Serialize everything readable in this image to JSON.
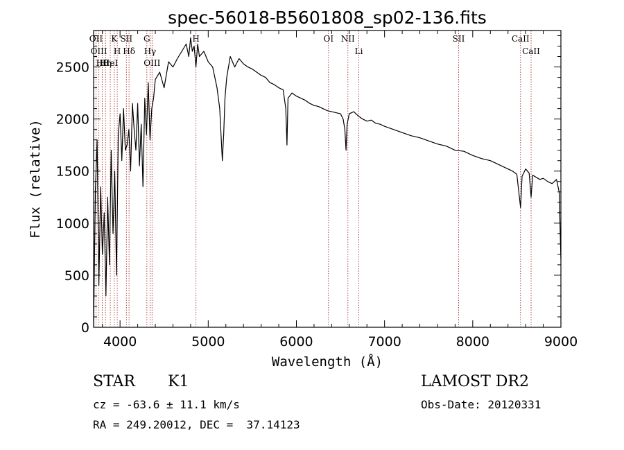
{
  "chart_data": {
    "type": "line",
    "title": "spec-56018-B5601808_sp02-136.fits",
    "xlabel": "Wavelength (Å)",
    "ylabel": "Flux (relative)",
    "xlim": [
      3700,
      9000
    ],
    "ylim": [
      0,
      2850
    ],
    "x_ticks": [
      4000,
      5000,
      6000,
      7000,
      8000,
      9000
    ],
    "y_ticks": [
      0,
      500,
      1000,
      1500,
      2000,
      2500
    ],
    "grid": false,
    "series": [
      {
        "color": "#000000",
        "x": [
          3700,
          3720,
          3740,
          3760,
          3780,
          3800,
          3820,
          3840,
          3860,
          3880,
          3900,
          3920,
          3940,
          3960,
          3980,
          4000,
          4020,
          4040,
          4060,
          4080,
          4100,
          4120,
          4140,
          4160,
          4180,
          4200,
          4220,
          4240,
          4260,
          4280,
          4300,
          4320,
          4340,
          4360,
          4380,
          4400,
          4450,
          4500,
          4550,
          4600,
          4650,
          4700,
          4750,
          4780,
          4800,
          4820,
          4840,
          4861,
          4880,
          4900,
          4950,
          5000,
          5050,
          5100,
          5130,
          5160,
          5175,
          5190,
          5210,
          5250,
          5300,
          5350,
          5400,
          5450,
          5500,
          5550,
          5600,
          5650,
          5700,
          5750,
          5800,
          5850,
          5880,
          5893,
          5905,
          5950,
          6000,
          6050,
          6100,
          6150,
          6200,
          6250,
          6300,
          6350,
          6400,
          6450,
          6500,
          6530,
          6550,
          6563,
          6575,
          6600,
          6650,
          6700,
          6750,
          6800,
          6850,
          6900,
          6950,
          7000,
          7100,
          7200,
          7300,
          7400,
          7500,
          7600,
          7700,
          7800,
          7900,
          8000,
          8100,
          8200,
          8300,
          8400,
          8450,
          8500,
          8542,
          8560,
          8600,
          8640,
          8662,
          8680,
          8720,
          8760,
          8800,
          8850,
          8900,
          8950,
          8980,
          9000
        ],
        "y": [
          0,
          1300,
          1800,
          400,
          1350,
          700,
          1100,
          300,
          1250,
          600,
          1700,
          900,
          1500,
          500,
          1850,
          2050,
          1600,
          2100,
          1700,
          1750,
          1900,
          1500,
          2150,
          1900,
          1700,
          2150,
          1550,
          1950,
          1350,
          2200,
          1850,
          2350,
          1800,
          2100,
          2200,
          2380,
          2450,
          2300,
          2550,
          2500,
          2580,
          2650,
          2720,
          2600,
          2780,
          2650,
          2700,
          2500,
          2720,
          2600,
          2650,
          2550,
          2500,
          2300,
          2100,
          1600,
          1850,
          2200,
          2400,
          2600,
          2500,
          2580,
          2530,
          2500,
          2480,
          2450,
          2420,
          2400,
          2350,
          2330,
          2300,
          2280,
          2100,
          1750,
          2200,
          2250,
          2220,
          2200,
          2180,
          2150,
          2130,
          2120,
          2100,
          2080,
          2070,
          2060,
          2050,
          2000,
          1900,
          1700,
          1950,
          2050,
          2070,
          2030,
          2000,
          1980,
          1990,
          1960,
          1950,
          1930,
          1900,
          1870,
          1840,
          1820,
          1790,
          1760,
          1740,
          1700,
          1690,
          1650,
          1620,
          1600,
          1560,
          1520,
          1500,
          1470,
          1150,
          1450,
          1520,
          1480,
          1250,
          1460,
          1440,
          1420,
          1430,
          1400,
          1380,
          1420,
          1300,
          650
        ]
      }
    ],
    "line_markers": [
      {
        "wave": 3727,
        "label": "OII"
      },
      {
        "wave": 3760,
        "label": "OIII"
      },
      {
        "wave": 3798,
        "label": "Hθ"
      },
      {
        "wave": 3835,
        "label": "Hη"
      },
      {
        "wave": 3889,
        "label": "HeI"
      },
      {
        "wave": 3934,
        "label": "K"
      },
      {
        "wave": 3968,
        "label": "H"
      },
      {
        "wave": 4072,
        "label": "SII"
      },
      {
        "wave": 4102,
        "label": "Hδ"
      },
      {
        "wave": 4304,
        "label": "G"
      },
      {
        "wave": 4340,
        "label": "Hγ"
      },
      {
        "wave": 4363,
        "label": "OIII"
      },
      {
        "wave": 4861,
        "label": "H"
      },
      {
        "wave": 6364,
        "label": "OI"
      },
      {
        "wave": 6584,
        "label": "NII"
      },
      {
        "wave": 6708,
        "label": "Li"
      },
      {
        "wave": 7840,
        "label": "SII"
      },
      {
        "wave": 8542,
        "label": "CaII"
      },
      {
        "wave": 8662,
        "label": "CaII"
      }
    ]
  },
  "info": {
    "object_class": "STAR",
    "subclass": "K1",
    "survey": "LAMOST DR2",
    "redshift": "cz = -63.6 ± 11.1 km/s",
    "obs_date": "Obs-Date: 20120331",
    "coords": "RA = 249.20012, DEC =  37.14123"
  }
}
